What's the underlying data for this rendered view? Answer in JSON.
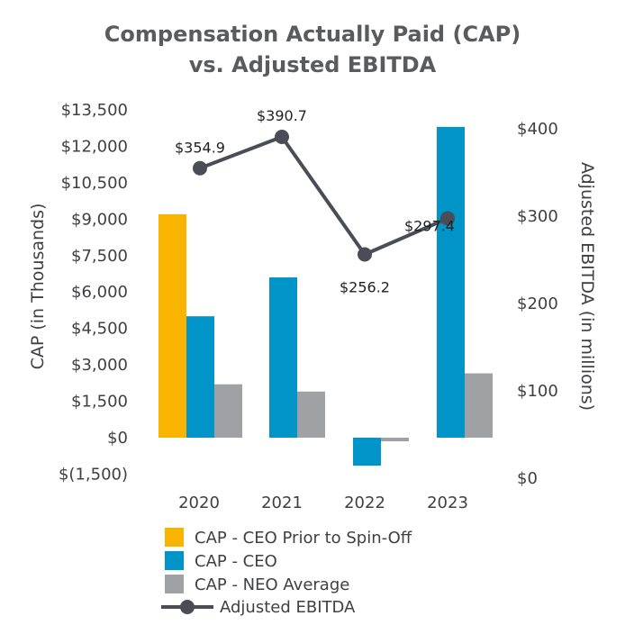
{
  "chart_data": {
    "type": "bar",
    "title": [
      "Compensation Actually Paid (CAP)",
      "vs. Adjusted EBITDA"
    ],
    "categories": [
      "2020",
      "2021",
      "2022",
      "2023"
    ],
    "ylabel": "CAP (in Thousands)",
    "ylabel_right": "Adjusted EBITDA (in millions)",
    "ylim": [
      -1500,
      13500
    ],
    "yticks": [
      -1500,
      0,
      1500,
      3000,
      4500,
      6000,
      7500,
      9000,
      10500,
      12000,
      13500
    ],
    "ytick_labels": [
      "$(1,500)",
      "$0",
      "$1,500",
      "$3,000",
      "$4,500",
      "$6,000",
      "$7,500",
      "$9,000",
      "$10,500",
      "$12,000",
      "$13,500"
    ],
    "ylim_right": [
      0,
      400
    ],
    "yticks_right": [
      0,
      100,
      200,
      300,
      400
    ],
    "ytick_labels_right": [
      "$0",
      "$100",
      "$200",
      "$300",
      "$400"
    ],
    "series": [
      {
        "name": "CAP - CEO Prior to Spin-Off",
        "type": "bar",
        "color": "#f9b400",
        "values": [
          9200,
          null,
          null,
          null
        ]
      },
      {
        "name": "CAP - CEO",
        "type": "bar",
        "color": "#0094c8",
        "values": [
          5000,
          6600,
          -1150,
          12800
        ]
      },
      {
        "name": "CAP - NEO Average",
        "type": "bar",
        "color": "#9fa1a4",
        "values": [
          2200,
          1900,
          -150,
          2650
        ]
      },
      {
        "name": "Adjusted EBITDA",
        "type": "line",
        "axis": "right",
        "color": "#4a4c56",
        "values": [
          354.9,
          390.7,
          256.2,
          297.4
        ],
        "labels": [
          "$354.9",
          "$390.7",
          "$256.2",
          "$297.4"
        ]
      }
    ],
    "grid": false,
    "legend_position": "bottom"
  }
}
